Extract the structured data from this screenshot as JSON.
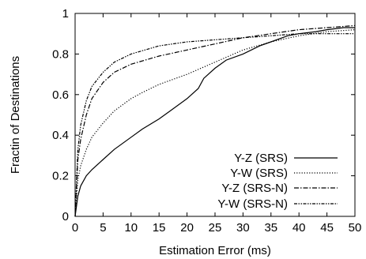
{
  "chart_data": {
    "type": "line",
    "xlabel": "Estimation Error (ms)",
    "ylabel": "Fractin of Destinations",
    "xlim": [
      0,
      50
    ],
    "ylim": [
      0,
      1
    ],
    "xticks": [
      "0",
      "5",
      "10",
      "15",
      "20",
      "25",
      "30",
      "35",
      "40",
      "45",
      "50"
    ],
    "yticks": [
      "0",
      "0.2",
      "0.4",
      "0.6",
      "0.8",
      "1"
    ],
    "grid": false,
    "legend_position": "bottom-right",
    "series": [
      {
        "name": "Y-Z (SRS)",
        "line_style": "solid",
        "color": "#000000",
        "x": [
          0,
          0.5,
          1,
          2,
          3,
          5,
          7,
          10,
          12,
          15,
          17,
          20,
          22,
          23,
          25,
          27,
          30,
          33,
          35,
          38,
          40,
          43,
          45,
          48,
          50
        ],
        "y": [
          0,
          0.1,
          0.15,
          0.2,
          0.23,
          0.28,
          0.33,
          0.39,
          0.43,
          0.48,
          0.52,
          0.58,
          0.63,
          0.68,
          0.73,
          0.77,
          0.8,
          0.84,
          0.86,
          0.89,
          0.9,
          0.91,
          0.92,
          0.93,
          0.93
        ]
      },
      {
        "name": "Y-W (SRS)",
        "line_style": "dotted",
        "color": "#000000",
        "x": [
          0,
          0.5,
          1,
          2,
          3,
          5,
          7,
          10,
          12,
          15,
          20,
          25,
          30,
          35,
          40,
          45,
          50
        ],
        "y": [
          0,
          0.18,
          0.25,
          0.33,
          0.39,
          0.46,
          0.52,
          0.58,
          0.61,
          0.65,
          0.7,
          0.76,
          0.82,
          0.86,
          0.89,
          0.91,
          0.92
        ]
      },
      {
        "name": "Y-Z (SRS-N)",
        "line_style": "dashdot",
        "color": "#000000",
        "x": [
          0,
          0.5,
          1,
          2,
          3,
          5,
          7,
          10,
          15,
          20,
          25,
          30,
          35,
          40,
          45,
          50
        ],
        "y": [
          0,
          0.28,
          0.38,
          0.5,
          0.58,
          0.66,
          0.71,
          0.75,
          0.79,
          0.82,
          0.85,
          0.88,
          0.9,
          0.92,
          0.93,
          0.94
        ]
      },
      {
        "name": "Y-W (SRS-N)",
        "line_style": "dashdotdot",
        "color": "#000000",
        "x": [
          0,
          0.5,
          1,
          2,
          3,
          5,
          7,
          10,
          15,
          20,
          25,
          30,
          35,
          40,
          45,
          50
        ],
        "y": [
          0,
          0.33,
          0.45,
          0.57,
          0.64,
          0.71,
          0.76,
          0.8,
          0.84,
          0.86,
          0.87,
          0.88,
          0.89,
          0.9,
          0.9,
          0.9
        ]
      }
    ]
  }
}
